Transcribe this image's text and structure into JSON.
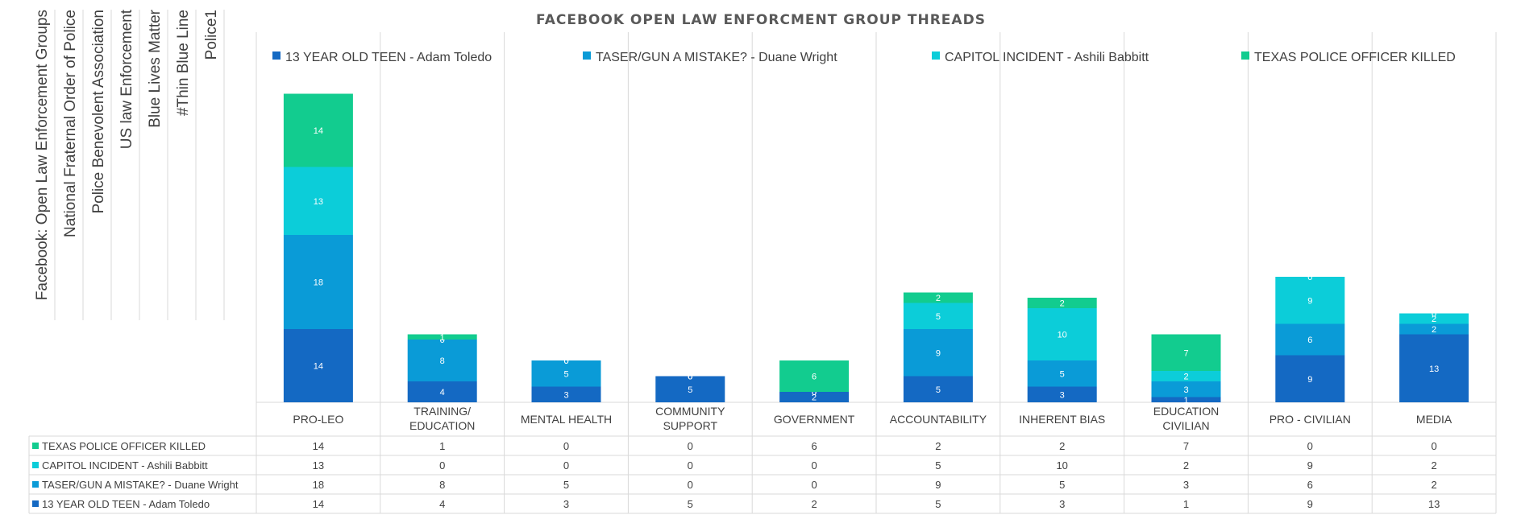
{
  "chart_data": {
    "type": "bar",
    "stacked": true,
    "title": "FACEBOOK OPEN LAW ENFORCMENT GROUP THREADS",
    "categories": [
      [
        "PRO-LEO"
      ],
      [
        "TRAINING/",
        "EDUCATION"
      ],
      [
        "MENTAL HEALTH"
      ],
      [
        "COMMUNITY",
        "SUPPORT"
      ],
      [
        "GOVERNMENT"
      ],
      [
        "ACCOUNTABILITY"
      ],
      [
        "INHERENT BIAS"
      ],
      [
        "EDUCATION",
        "CIVILIAN"
      ],
      [
        "PRO - CIVILIAN"
      ],
      [
        "MEDIA"
      ]
    ],
    "series": [
      {
        "name": "13 YEAR OLD TEEN - Adam Toledo",
        "color": "#1469C3",
        "values": [
          14,
          4,
          3,
          5,
          2,
          5,
          3,
          1,
          9,
          13
        ]
      },
      {
        "name": "TASER/GUN A MISTAKE? - Duane Wright",
        "color": "#0A9BD7",
        "values": [
          18,
          8,
          5,
          0,
          0,
          9,
          5,
          3,
          6,
          2
        ]
      },
      {
        "name": "CAPITOL INCIDENT - Ashili Babbitt",
        "color": "#0CCDD9",
        "values": [
          13,
          0,
          0,
          0,
          0,
          5,
          10,
          2,
          9,
          2
        ]
      },
      {
        "name": "TEXAS POLICE OFFICER KILLED",
        "color": "#12CC8F",
        "values": [
          14,
          1,
          0,
          0,
          6,
          2,
          2,
          7,
          0,
          0
        ]
      }
    ],
    "legend_position": "top",
    "data_table": true,
    "grid": "vertical",
    "ylim": [
      0,
      60
    ]
  },
  "side_labels": [
    "Facebook: Open Law Enforcement Groups",
    "National Fraternal Order of Police",
    "Police Benevolent Association",
    "US law Enforcement",
    "Blue Lives Matter",
    "#Thin Blue Line",
    "Police1"
  ]
}
